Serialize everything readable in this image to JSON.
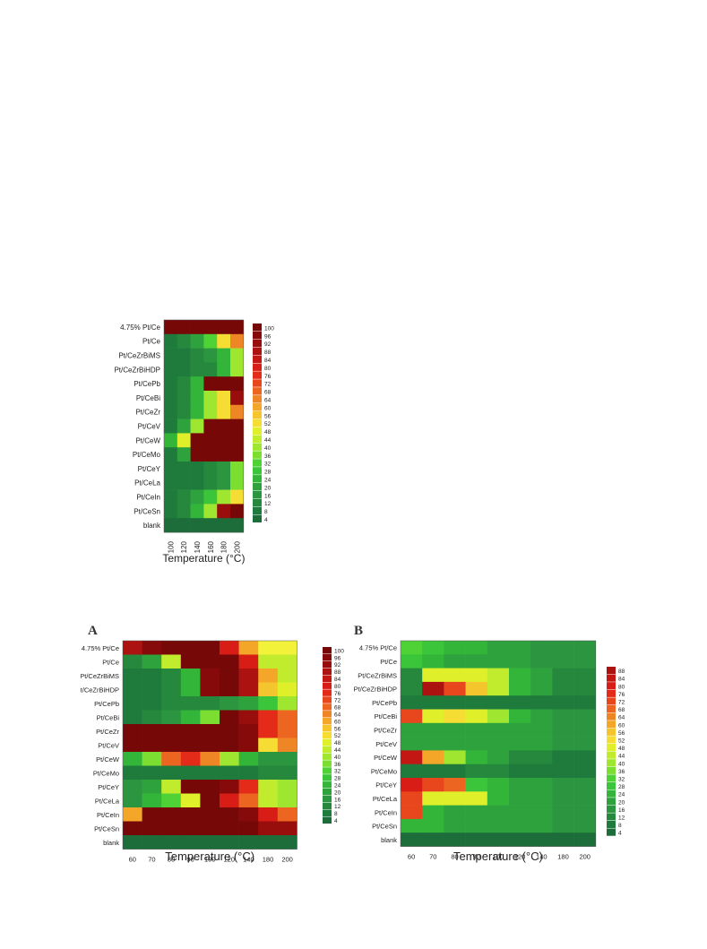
{
  "colors": {
    "scale": [
      "#1c6d3a",
      "#1f7b3c",
      "#25883d",
      "#2b963f",
      "#2ea23c",
      "#33b53a",
      "#3bc53a",
      "#4fd236",
      "#7dde32",
      "#9fe630",
      "#c1ec2d",
      "#dff02b",
      "#f2f23a",
      "#f5dd33",
      "#f5c52d",
      "#f3a628",
      "#ef8626",
      "#ec6622",
      "#e8461d",
      "#e42a18",
      "#d81c16",
      "#c21713",
      "#ac1210",
      "#980e0d",
      "#860a0a",
      "#760808"
    ]
  },
  "chart_data": [
    {
      "type": "heatmap",
      "panel_label": "",
      "title": "",
      "xlabel": "Temperature (°C)",
      "ylabel": "",
      "x": [
        "100",
        "120",
        "140",
        "160",
        "180",
        "200"
      ],
      "x_tick_rotation": "vertical",
      "y": [
        "4.75% Pt/Ce",
        "Pt/Ce",
        "Pt/CeZrBiMS",
        "Pt/CeZrBiHDP",
        "Pt/CePb",
        "Pt/CeBi",
        "Pt/CeZr",
        "Pt/CeV",
        "Pt/CeW",
        "Pt/CeMo",
        "Pt/CeY",
        "Pt/CeLa",
        "Pt/CeIn",
        "Pt/CeSn",
        "blank"
      ],
      "values": [
        [
          100,
          100,
          100,
          100,
          100,
          100
        ],
        [
          8,
          12,
          20,
          32,
          52,
          64
        ],
        [
          6,
          8,
          10,
          14,
          24,
          40
        ],
        [
          6,
          8,
          10,
          12,
          24,
          38
        ],
        [
          8,
          12,
          24,
          100,
          100,
          100
        ],
        [
          6,
          12,
          24,
          40,
          52,
          92
        ],
        [
          6,
          12,
          24,
          40,
          52,
          64
        ],
        [
          6,
          20,
          40,
          100,
          100,
          100
        ],
        [
          24,
          48,
          100,
          100,
          100,
          100
        ],
        [
          6,
          20,
          100,
          100,
          100,
          100
        ],
        [
          6,
          8,
          8,
          10,
          16,
          36
        ],
        [
          6,
          8,
          8,
          10,
          16,
          36
        ],
        [
          8,
          12,
          20,
          28,
          40,
          52
        ],
        [
          6,
          12,
          24,
          40,
          92,
          100
        ],
        [
          4,
          4,
          4,
          4,
          4,
          4
        ]
      ],
      "legend": {
        "placement": "right",
        "ticks": [
          "100",
          "96",
          "92",
          "88",
          "84",
          "80",
          "76",
          "72",
          "68",
          "64",
          "60",
          "56",
          "52",
          "48",
          "44",
          "40",
          "36",
          "32",
          "28",
          "24",
          "20",
          "16",
          "12",
          "8",
          "4"
        ]
      }
    },
    {
      "type": "heatmap",
      "panel_label": "A",
      "title": "",
      "xlabel": "Temperature (°C)",
      "ylabel": "",
      "x": [
        "60",
        "70",
        "80",
        "90",
        "100",
        "120",
        "140",
        "180",
        "200"
      ],
      "x_tick_rotation": "horizontal",
      "y": [
        "4.75% Pt/Ce",
        "Pt/Ce",
        "Pt/CeZrBiMS",
        "Pt/CeZrBiHDP",
        "Pt/CePb",
        "Pt/CeBi",
        "Pt/CeZr",
        "Pt/CeV",
        "Pt/CeW",
        "Pt/CeMo",
        "Pt/CeY",
        "Pt/CeLa",
        "Pt/CeIn",
        "Pt/CeSn",
        "blank"
      ],
      "values": [
        [
          88,
          96,
          100,
          100,
          100,
          80,
          60,
          50,
          50
        ],
        [
          12,
          20,
          44,
          100,
          100,
          100,
          80,
          44,
          44
        ],
        [
          8,
          8,
          12,
          24,
          96,
          100,
          88,
          60,
          44
        ],
        [
          8,
          8,
          12,
          24,
          96,
          100,
          88,
          56,
          48
        ],
        [
          8,
          8,
          10,
          12,
          10,
          16,
          20,
          28,
          40
        ],
        [
          8,
          10,
          16,
          24,
          36,
          100,
          92,
          76,
          68
        ],
        [
          100,
          100,
          100,
          100,
          100,
          100,
          96,
          76,
          68
        ],
        [
          100,
          100,
          100,
          100,
          100,
          100,
          96,
          52,
          64
        ],
        [
          24,
          36,
          68,
          76,
          64,
          40,
          24,
          16,
          16
        ],
        [
          8,
          8,
          8,
          8,
          8,
          8,
          8,
          12,
          12
        ],
        [
          16,
          20,
          44,
          100,
          100,
          96,
          76,
          44,
          40
        ],
        [
          16,
          24,
          32,
          48,
          100,
          80,
          68,
          44,
          40
        ],
        [
          60,
          100,
          100,
          100,
          100,
          100,
          96,
          80,
          68
        ],
        [
          100,
          100,
          100,
          100,
          100,
          100,
          100,
          92,
          92
        ],
        [
          4,
          4,
          4,
          4,
          4,
          4,
          4,
          4,
          4
        ]
      ],
      "legend": {
        "placement": "right",
        "ticks": [
          "100",
          "96",
          "92",
          "88",
          "84",
          "80",
          "76",
          "72",
          "68",
          "64",
          "60",
          "56",
          "52",
          "48",
          "44",
          "40",
          "36",
          "32",
          "28",
          "24",
          "20",
          "16",
          "12",
          "8",
          "4"
        ]
      }
    },
    {
      "type": "heatmap",
      "panel_label": "B",
      "title": "",
      "xlabel": "Temperature (°C)",
      "ylabel": "",
      "x": [
        "60",
        "70",
        "80",
        "90",
        "100",
        "120",
        "140",
        "180",
        "200"
      ],
      "x_tick_rotation": "horizontal",
      "y": [
        "4.75% Pt/Ce",
        "Pt/Ce",
        "Pt/CeZrBiMS",
        "Pt/CeZrBiHDP",
        "Pt/CePb",
        "Pt/CeBi",
        "Pt/CeZr",
        "Pt/CeV",
        "Pt/CeW",
        "Pt/CeMo",
        "Pt/CeY",
        "Pt/CeLa",
        "Pt/CeIn",
        "Pt/CeSn",
        "blank"
      ],
      "values": [
        [
          32,
          28,
          24,
          24,
          20,
          20,
          16,
          16,
          16
        ],
        [
          28,
          24,
          20,
          20,
          20,
          20,
          16,
          16,
          16
        ],
        [
          12,
          48,
          48,
          48,
          44,
          24,
          20,
          12,
          12
        ],
        [
          12,
          88,
          72,
          56,
          44,
          24,
          20,
          12,
          12
        ],
        [
          8,
          8,
          8,
          8,
          8,
          8,
          8,
          8,
          8
        ],
        [
          72,
          48,
          52,
          48,
          40,
          24,
          20,
          16,
          16
        ],
        [
          20,
          20,
          20,
          20,
          20,
          20,
          20,
          16,
          16
        ],
        [
          20,
          20,
          20,
          20,
          20,
          20,
          20,
          16,
          16
        ],
        [
          84,
          60,
          40,
          24,
          20,
          12,
          12,
          8,
          8
        ],
        [
          8,
          8,
          8,
          12,
          12,
          8,
          8,
          8,
          8
        ],
        [
          80,
          72,
          68,
          28,
          24,
          20,
          20,
          16,
          16
        ],
        [
          72,
          48,
          48,
          48,
          24,
          20,
          20,
          16,
          16
        ],
        [
          72,
          24,
          20,
          20,
          20,
          20,
          20,
          16,
          16
        ],
        [
          24,
          24,
          20,
          20,
          20,
          20,
          20,
          16,
          16
        ],
        [
          4,
          4,
          4,
          4,
          4,
          4,
          4,
          4,
          4
        ]
      ],
      "legend": {
        "placement": "right",
        "ticks": [
          "88",
          "84",
          "80",
          "76",
          "72",
          "68",
          "64",
          "60",
          "56",
          "52",
          "48",
          "44",
          "40",
          "36",
          "32",
          "28",
          "24",
          "20",
          "16",
          "12",
          "8",
          "4"
        ]
      }
    }
  ]
}
